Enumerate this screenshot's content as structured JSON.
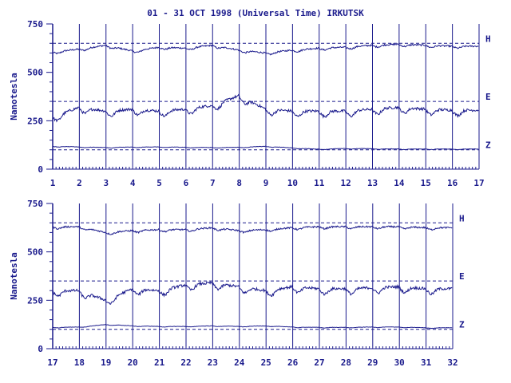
{
  "title": "01 - 31 OCT 1998 (Universal Time) IRKUTSK",
  "colors": {
    "ink": "#1a1a8c",
    "background": "#ffffff"
  },
  "chart_data": [
    {
      "type": "line",
      "ylabel": "Nanotesla",
      "ylim": [
        0,
        750
      ],
      "yticks": [
        "0",
        "250",
        "500",
        "750"
      ],
      "xlim": [
        1,
        17
      ],
      "xticks": [
        "1",
        "2",
        "3",
        "4",
        "5",
        "6",
        "7",
        "8",
        "9",
        "10",
        "11",
        "12",
        "13",
        "14",
        "15",
        "16",
        "17"
      ],
      "grid": "vertical lines at each day",
      "series": [
        {
          "name": "H",
          "baseline": 650,
          "values": [
            605,
            620,
            640,
            610,
            630,
            625,
            640,
            615,
            600,
            615,
            625,
            630,
            640,
            645,
            640,
            635
          ]
        },
        {
          "name": "E",
          "baseline": 350,
          "values": [
            270,
            320,
            300,
            310,
            300,
            310,
            330,
            380,
            310,
            300,
            300,
            300,
            310,
            320,
            310,
            305
          ]
        },
        {
          "name": "Z",
          "baseline": 100,
          "values": [
            118,
            115,
            112,
            114,
            115,
            113,
            112,
            113,
            118,
            110,
            103,
            107,
            106,
            104,
            104,
            104
          ]
        }
      ]
    },
    {
      "type": "line",
      "ylabel": "Nanotesla",
      "ylim": [
        0,
        750
      ],
      "yticks": [
        "0",
        "250",
        "500",
        "750"
      ],
      "xlim": [
        17,
        32
      ],
      "xticks": [
        "17",
        "18",
        "19",
        "20",
        "21",
        "22",
        "23",
        "24",
        "25",
        "26",
        "27",
        "28",
        "29",
        "30",
        "31",
        "32"
      ],
      "grid": "vertical lines at each day",
      "series": [
        {
          "name": "H",
          "baseline": 650,
          "values": [
            630,
            630,
            600,
            610,
            615,
            615,
            625,
            610,
            615,
            625,
            630,
            630,
            630,
            630,
            625
          ]
        },
        {
          "name": "E",
          "baseline": 350,
          "values": [
            300,
            300,
            250,
            310,
            300,
            330,
            340,
            320,
            300,
            320,
            310,
            310,
            315,
            320,
            310
          ]
        },
        {
          "name": "Z",
          "baseline": 100,
          "values": [
            110,
            112,
            125,
            118,
            115,
            115,
            118,
            115,
            118,
            112,
            110,
            110,
            112,
            112,
            108
          ]
        }
      ]
    }
  ]
}
